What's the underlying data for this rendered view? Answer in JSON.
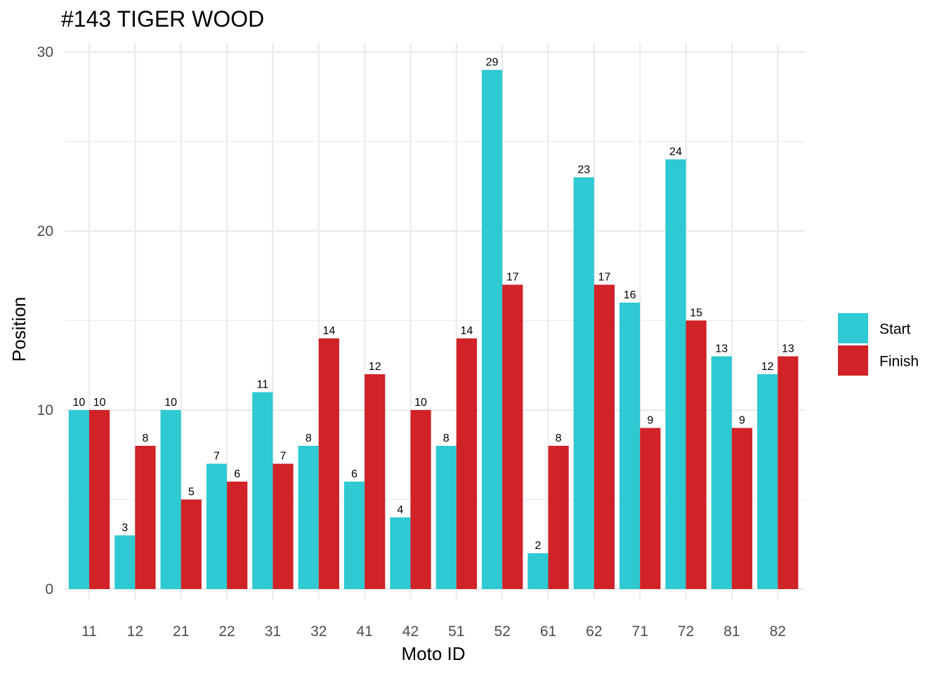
{
  "chart_data": {
    "type": "bar",
    "title": "#143 TIGER WOOD",
    "xlabel": "Moto ID",
    "ylabel": "Position",
    "categories": [
      "11",
      "12",
      "21",
      "22",
      "31",
      "32",
      "41",
      "42",
      "51",
      "52",
      "61",
      "62",
      "71",
      "72",
      "81",
      "82"
    ],
    "series": [
      {
        "name": "Start",
        "color": "#2EC9D2",
        "values": [
          10,
          3,
          10,
          7,
          11,
          8,
          6,
          4,
          8,
          29,
          2,
          23,
          16,
          24,
          13,
          12
        ]
      },
      {
        "name": "Finish",
        "color": "#D02227",
        "values": [
          10,
          8,
          5,
          6,
          7,
          14,
          12,
          10,
          14,
          17,
          8,
          17,
          9,
          15,
          9,
          13
        ]
      }
    ],
    "ylim": [
      0,
      30
    ],
    "yticks": [
      "0",
      "10",
      "20",
      "30"
    ],
    "grid": true,
    "legend_position": "right"
  }
}
